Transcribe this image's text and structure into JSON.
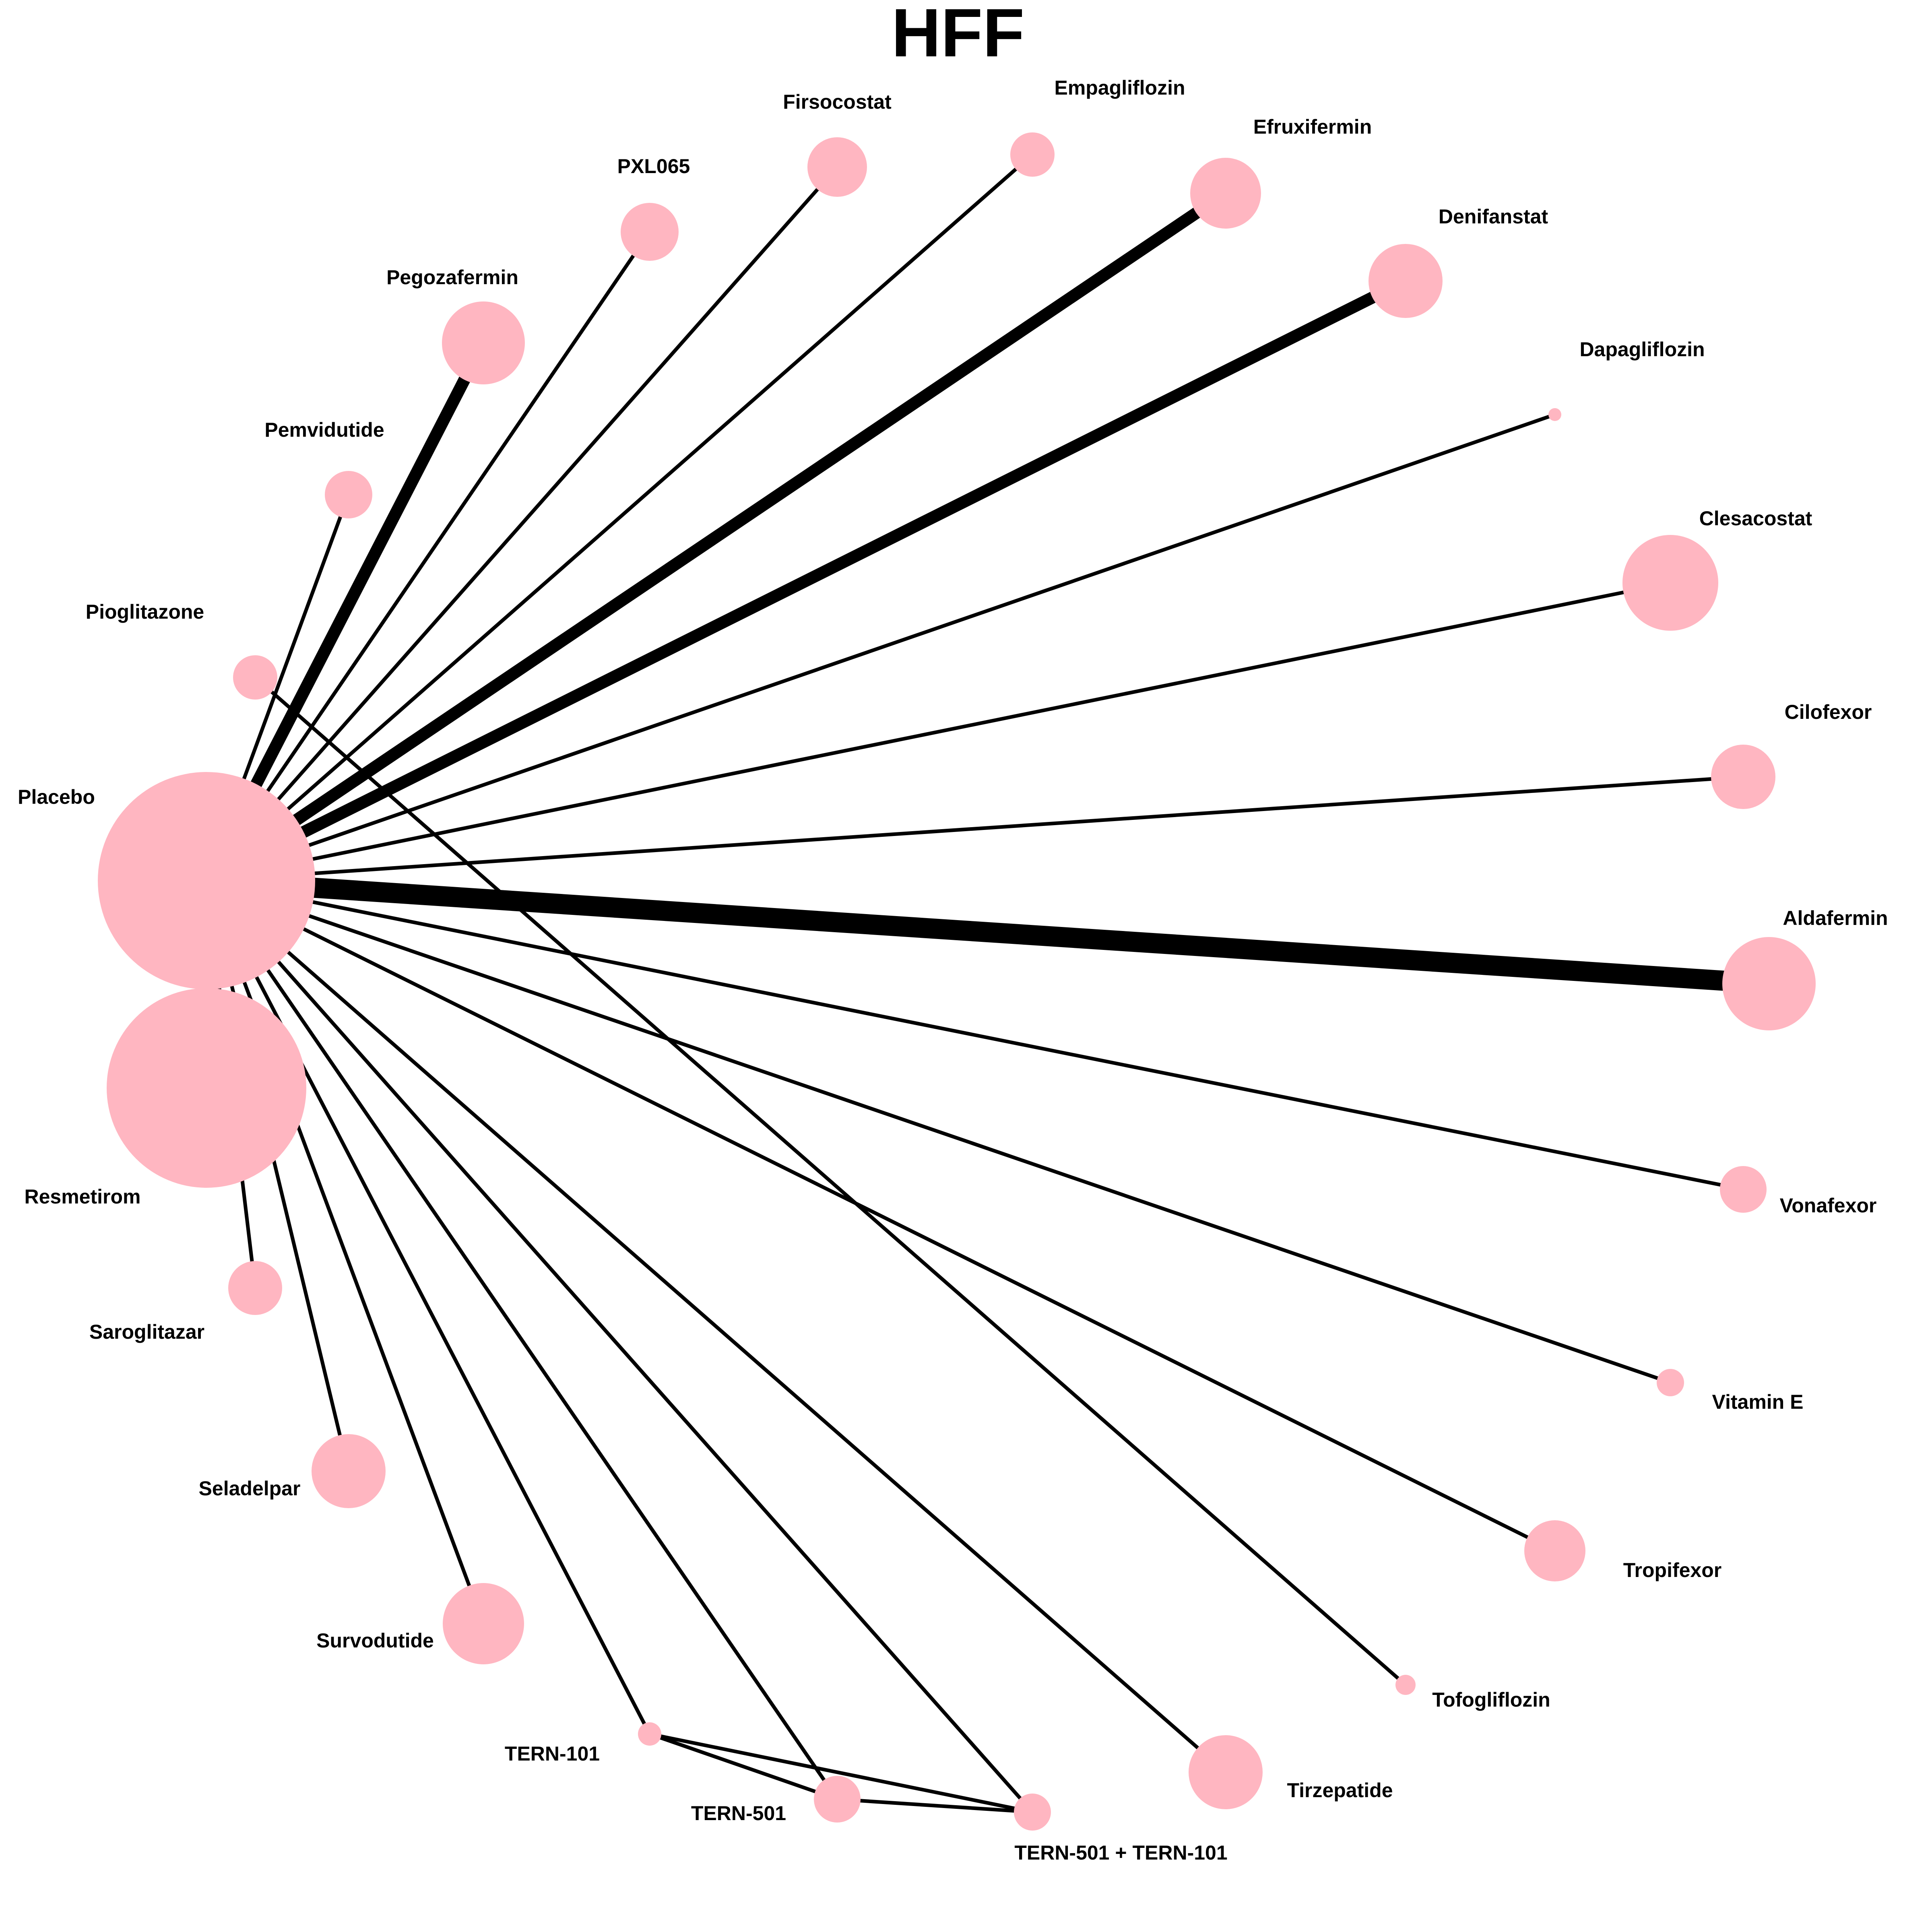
{
  "title": "HFF",
  "colors": {
    "node": "#FFB6C1",
    "edge": "#000000",
    "background": "#FFFFFF",
    "text": "#000000"
  },
  "nodes": {
    "placebo": "Placebo",
    "resmetirom": "Resmetirom",
    "saroglitazar": "Saroglitazar",
    "seladelpar": "Seladelpar",
    "survodutide": "Survodutide",
    "tern101": "TERN-101",
    "tern501": "TERN-501",
    "tern501_101": "TERN-501 + TERN-101",
    "tirzepatide": "Tirzepatide",
    "tofogliflozin": "Tofogliflozin",
    "tropifexor": "Tropifexor",
    "vitamin_e": "Vitamin E",
    "vonafexor": "Vonafexor",
    "aldafermin": "Aldafermin",
    "cilofexor": "Cilofexor",
    "clesacostat": "Clesacostat",
    "dapagliflozin": "Dapagliflozin",
    "denifanstat": "Denifanstat",
    "efruxifermin": "Efruxifermin",
    "empagliflozin": "Empagliflozin",
    "firsocostat": "Firsocostat",
    "pxl065": "PXL065",
    "pegozafermin": "Pegozafermin",
    "pemvidutide": "Pemvidutide",
    "pioglitazone": "Pioglitazone"
  }
}
